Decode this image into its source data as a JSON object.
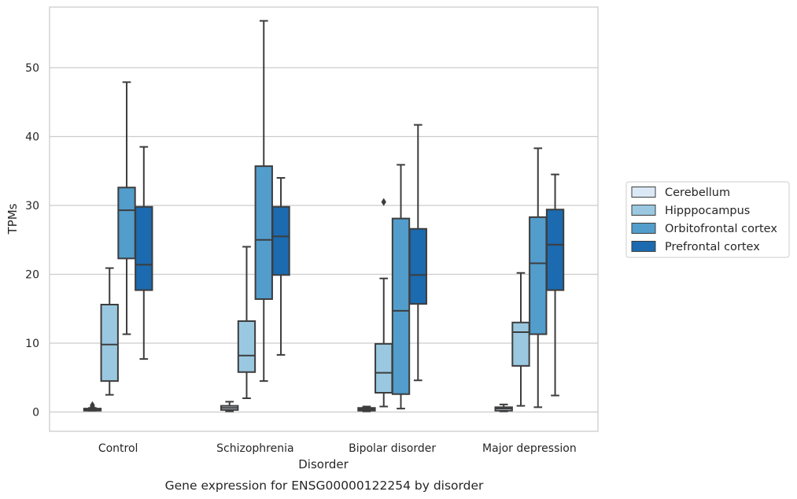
{
  "chart_data": {
    "type": "box",
    "caption": "Gene expression for ENSG00000122254 by disorder",
    "xlabel": "Disorder",
    "ylabel": "TPMs",
    "ylim": [
      -2.8,
      58.8
    ],
    "yticks": [
      "0",
      "10",
      "20",
      "30",
      "40",
      "50"
    ],
    "grid": "horizontal",
    "legend_position": "right",
    "categories": [
      "Control",
      "Schizophrenia",
      "Bipolar disorder",
      "Major depression"
    ],
    "series": [
      {
        "name": "Cerebellum",
        "color": "#dbe9f6",
        "boxes": [
          {
            "whisker_low": 0.2,
            "q1": 0.2,
            "median": 0.4,
            "q3": 0.5,
            "whisker_high": 0.6,
            "outliers": [
              0.8,
              1.0
            ]
          },
          {
            "whisker_low": 0.1,
            "q1": 0.3,
            "median": 0.6,
            "q3": 0.9,
            "whisker_high": 1.5,
            "outliers": []
          },
          {
            "whisker_low": 0.1,
            "q1": 0.2,
            "median": 0.4,
            "q3": 0.6,
            "whisker_high": 0.8,
            "outliers": []
          },
          {
            "whisker_low": 0.1,
            "q1": 0.2,
            "median": 0.5,
            "q3": 0.7,
            "whisker_high": 1.1,
            "outliers": []
          }
        ]
      },
      {
        "name": "Hipppocampus",
        "color": "#9ac8e0",
        "boxes": [
          {
            "whisker_low": 2.5,
            "q1": 4.5,
            "median": 9.8,
            "q3": 15.6,
            "whisker_high": 20.9,
            "outliers": []
          },
          {
            "whisker_low": 2.0,
            "q1": 5.8,
            "median": 8.2,
            "q3": 13.2,
            "whisker_high": 24.0,
            "outliers": []
          },
          {
            "whisker_low": 0.8,
            "q1": 2.8,
            "median": 5.7,
            "q3": 9.9,
            "whisker_high": 19.4,
            "outliers": [
              30.5
            ]
          },
          {
            "whisker_low": 0.9,
            "q1": 6.7,
            "median": 11.6,
            "q3": 13.0,
            "whisker_high": 20.2,
            "outliers": []
          }
        ]
      },
      {
        "name": "Orbitofrontal cortex",
        "color": "#529dcc",
        "boxes": [
          {
            "whisker_low": 11.3,
            "q1": 22.3,
            "median": 29.3,
            "q3": 32.6,
            "whisker_high": 47.9,
            "outliers": []
          },
          {
            "whisker_low": 4.5,
            "q1": 16.4,
            "median": 25.0,
            "q3": 35.7,
            "whisker_high": 56.8,
            "outliers": []
          },
          {
            "whisker_low": 0.5,
            "q1": 2.6,
            "median": 14.7,
            "q3": 28.1,
            "whisker_high": 35.9,
            "outliers": []
          },
          {
            "whisker_low": 0.7,
            "q1": 11.3,
            "median": 21.6,
            "q3": 28.3,
            "whisker_high": 38.3,
            "outliers": []
          }
        ]
      },
      {
        "name": "Prefrontal cortex",
        "color": "#1c6aaf",
        "boxes": [
          {
            "whisker_low": 7.7,
            "q1": 17.7,
            "median": 21.4,
            "q3": 29.8,
            "whisker_high": 38.5,
            "outliers": []
          },
          {
            "whisker_low": 8.3,
            "q1": 19.9,
            "median": 25.5,
            "q3": 29.8,
            "whisker_high": 34.0,
            "outliers": []
          },
          {
            "whisker_low": 4.6,
            "q1": 15.7,
            "median": 19.9,
            "q3": 26.6,
            "whisker_high": 41.7,
            "outliers": []
          },
          {
            "whisker_low": 2.4,
            "q1": 17.7,
            "median": 24.3,
            "q3": 29.4,
            "whisker_high": 34.5,
            "outliers": []
          }
        ]
      }
    ]
  }
}
